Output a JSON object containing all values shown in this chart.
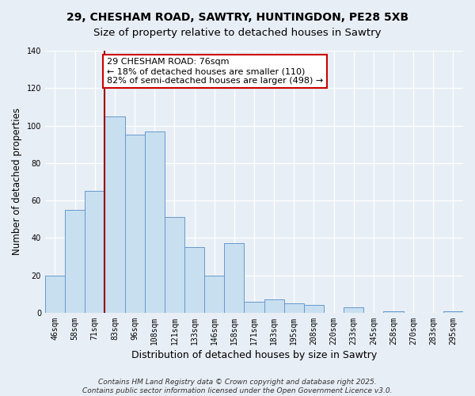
{
  "title": "29, CHESHAM ROAD, SAWTRY, HUNTINGDON, PE28 5XB",
  "subtitle": "Size of property relative to detached houses in Sawtry",
  "xlabel": "Distribution of detached houses by size in Sawtry",
  "ylabel": "Number of detached properties",
  "categories": [
    "46sqm",
    "58sqm",
    "71sqm",
    "83sqm",
    "96sqm",
    "108sqm",
    "121sqm",
    "133sqm",
    "146sqm",
    "158sqm",
    "171sqm",
    "183sqm",
    "195sqm",
    "208sqm",
    "220sqm",
    "233sqm",
    "245sqm",
    "258sqm",
    "270sqm",
    "283sqm",
    "295sqm"
  ],
  "values": [
    20,
    55,
    65,
    105,
    95,
    97,
    51,
    35,
    20,
    37,
    6,
    7,
    5,
    4,
    0,
    3,
    0,
    1,
    0,
    0,
    1
  ],
  "bar_color": "#c8dff0",
  "bar_edge_color": "#6699cc",
  "vline_color": "#990000",
  "vline_x_index": 2,
  "annotation_text_line1": "29 CHESHAM ROAD: 76sqm",
  "annotation_text_line2": "← 18% of detached houses are smaller (110)",
  "annotation_text_line3": "82% of semi-detached houses are larger (498) →",
  "annotation_box_facecolor": "#ffffff",
  "annotation_box_edgecolor": "#cc0000",
  "ylim": [
    0,
    140
  ],
  "yticks": [
    0,
    20,
    40,
    60,
    80,
    100,
    120,
    140
  ],
  "bg_color": "#e8eef5",
  "plot_bg_color": "#e8eef5",
  "grid_color": "#ffffff",
  "footer_line1": "Contains HM Land Registry data © Crown copyright and database right 2025.",
  "footer_line2": "Contains public sector information licensed under the Open Government Licence v3.0.",
  "title_fontsize": 10,
  "xlabel_fontsize": 9,
  "ylabel_fontsize": 8.5,
  "tick_fontsize": 7,
  "annotation_fontsize": 8,
  "footer_fontsize": 6.5
}
